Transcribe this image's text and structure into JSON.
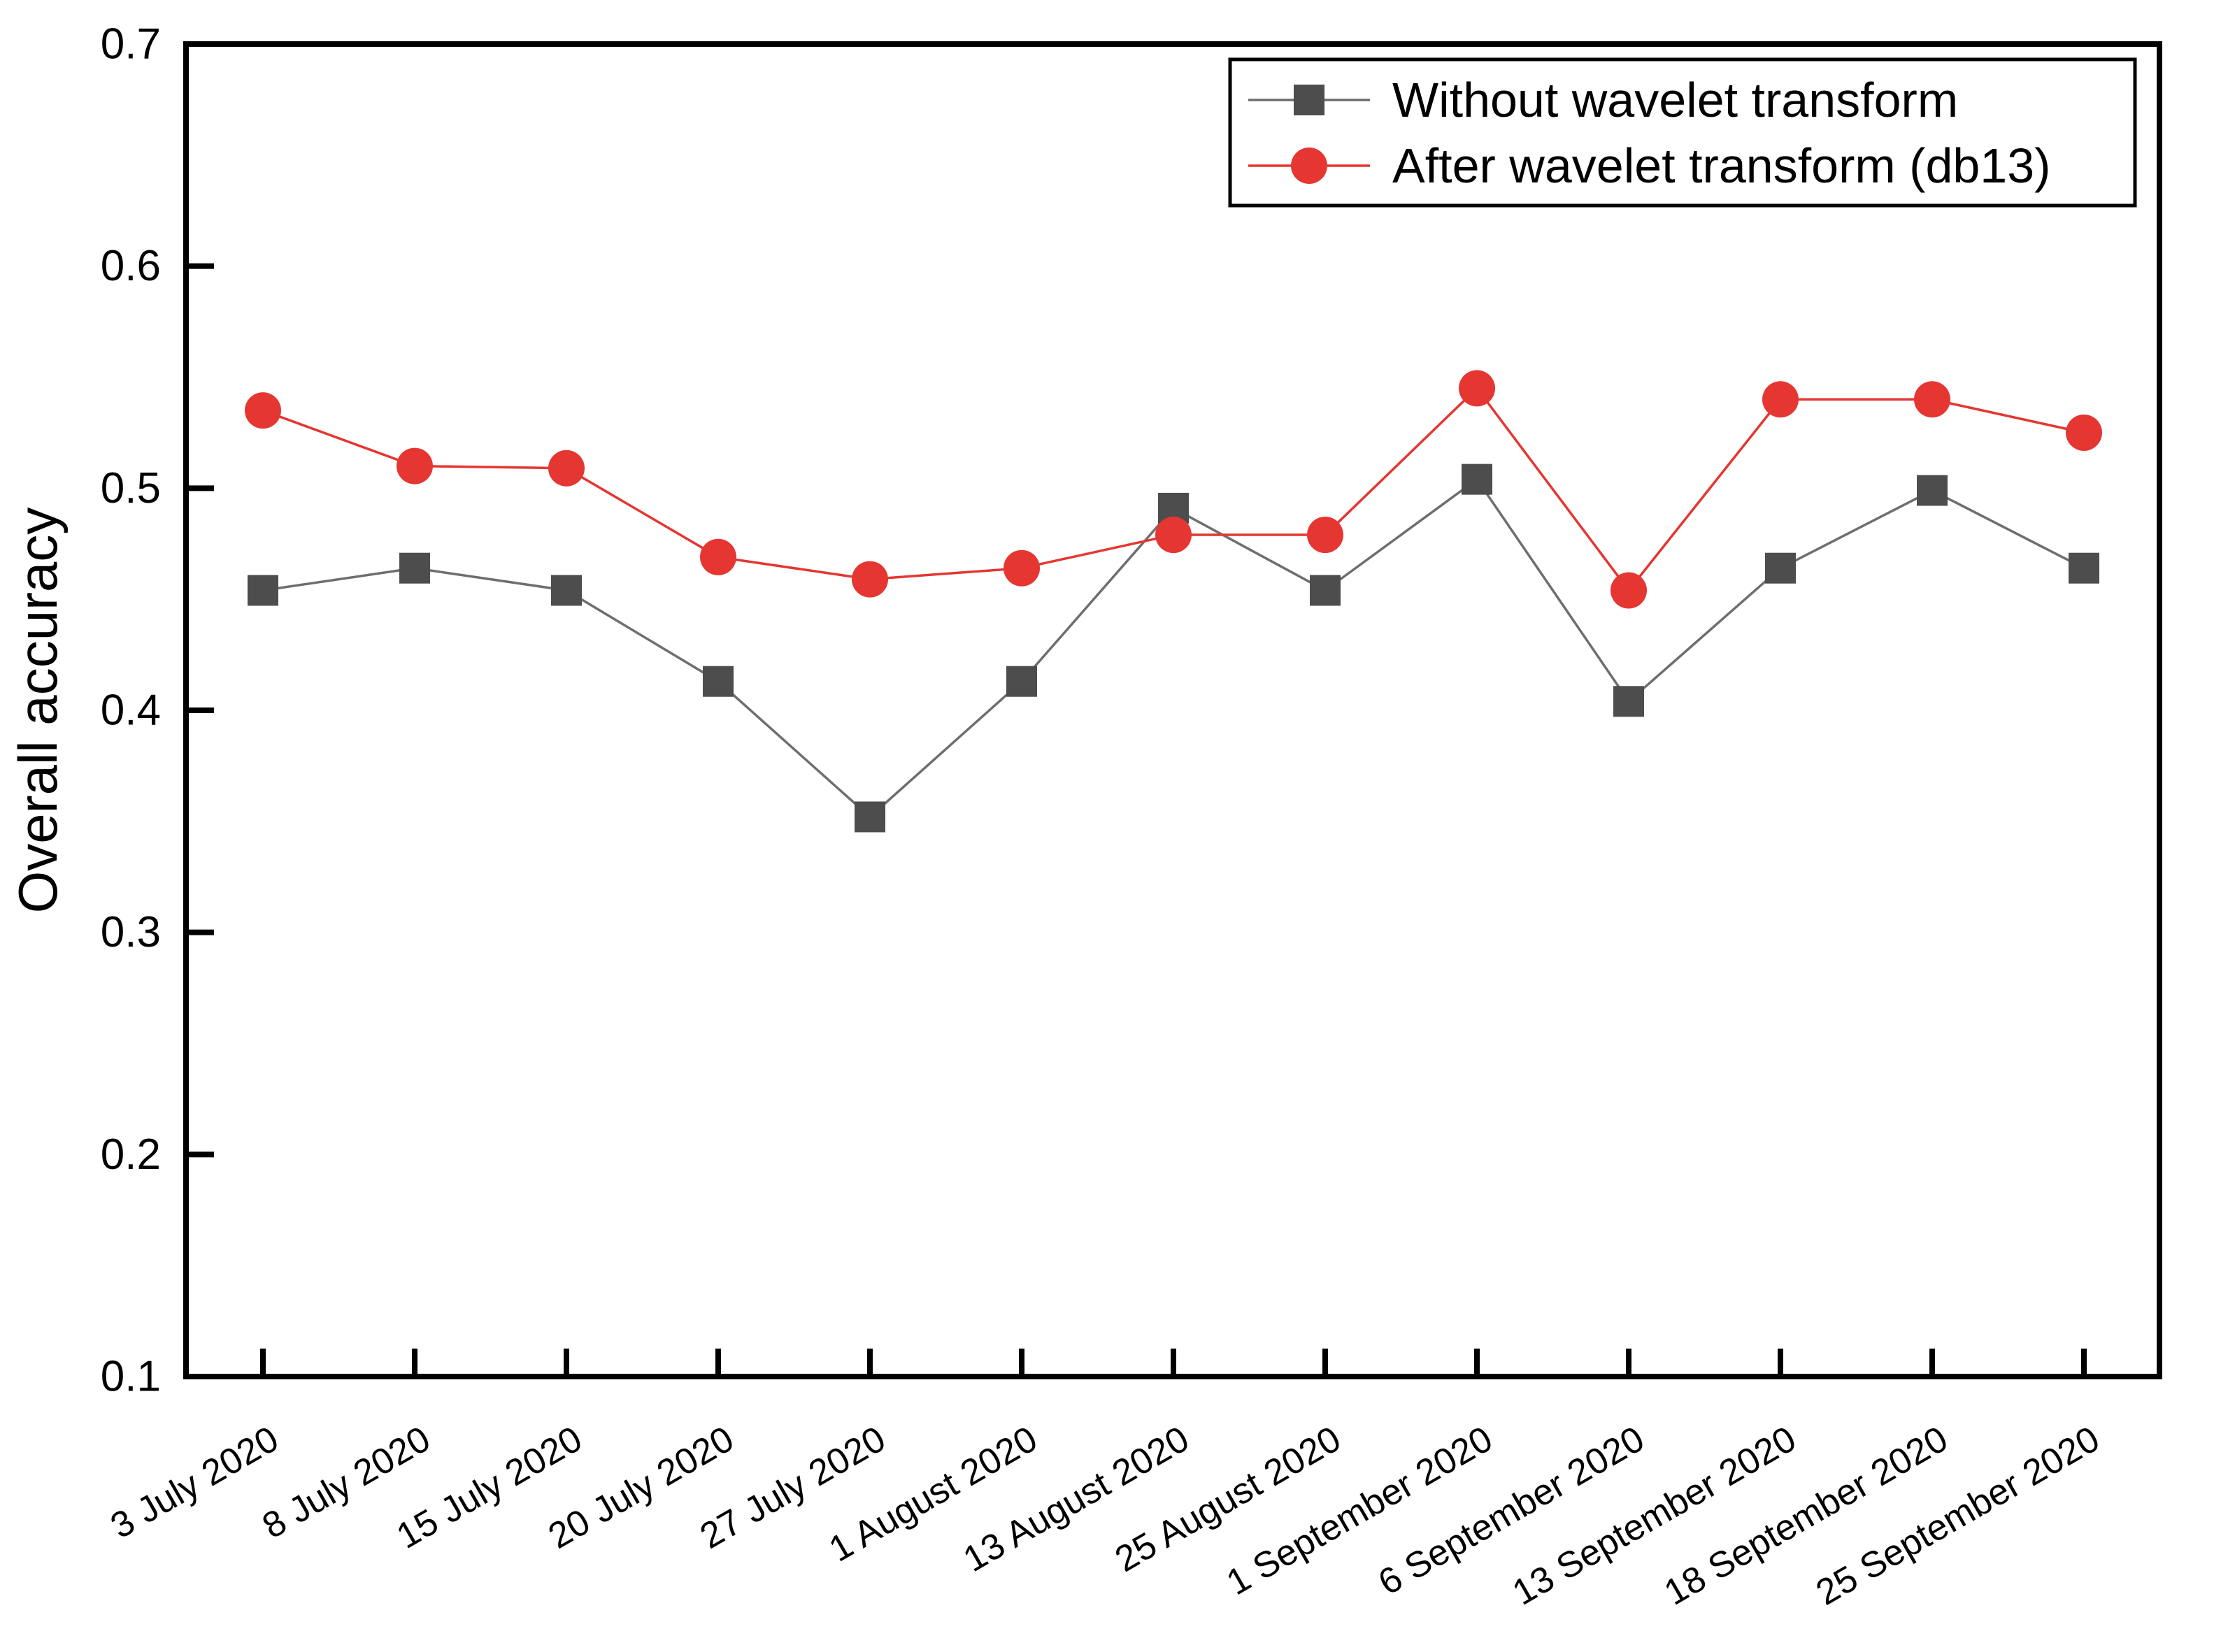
{
  "chart_data": {
    "type": "line",
    "title": "",
    "xlabel": "",
    "ylabel": "Overall accuracy",
    "ylim": [
      0.1,
      0.7
    ],
    "ytick_labels": [
      "0.1",
      "0.2",
      "0.3",
      "0.4",
      "0.5",
      "0.6",
      "0.7"
    ],
    "ytick_values": [
      0.1,
      0.2,
      0.3,
      0.4,
      0.5,
      0.6,
      0.7
    ],
    "grid": "off",
    "legend_position": "top-right-inside-box",
    "categories": [
      "3 July 2020",
      "8 July 2020",
      "15 July 2020",
      "20 July 2020",
      "27 July 2020",
      "1 August 2020",
      "13 August 2020",
      "25 August 2020",
      "1 September 2020",
      "6 September 2020",
      "13 September 2020",
      "18 September 2020",
      "25 September 2020"
    ],
    "series": [
      {
        "name": "Without wavelet transform",
        "marker": "square",
        "marker_color": "#4d4d4d",
        "line_color": "#6e6e6e",
        "values": [
          0.454,
          0.464,
          0.454,
          0.413,
          0.352,
          0.413,
          0.491,
          0.454,
          0.504,
          0.404,
          0.464,
          0.499,
          0.464
        ]
      },
      {
        "name": "After wavelet transform (db13)",
        "marker": "circle",
        "marker_color": "#e53631",
        "line_color": "#e53631",
        "values": [
          0.535,
          0.51,
          0.509,
          0.469,
          0.459,
          0.464,
          0.479,
          0.479,
          0.545,
          0.454,
          0.54,
          0.54,
          0.525
        ]
      }
    ],
    "axis_color": "#000000",
    "background_color": "#ffffff"
  }
}
